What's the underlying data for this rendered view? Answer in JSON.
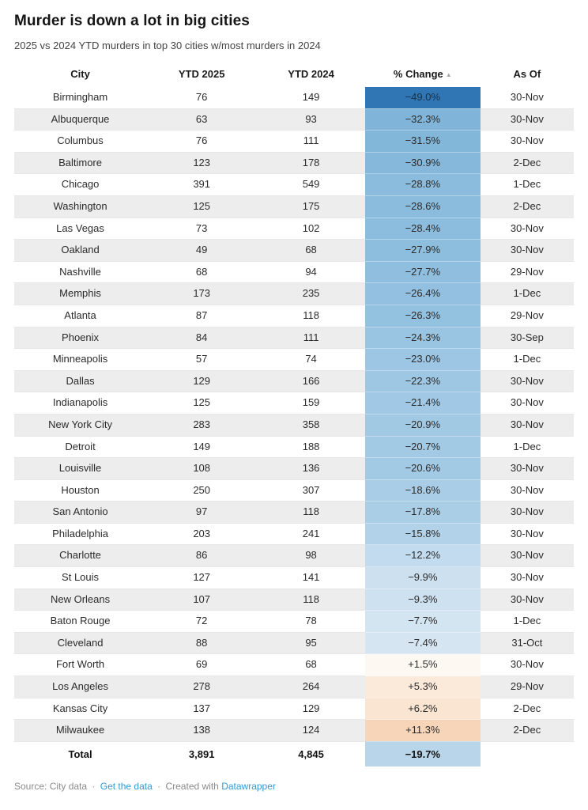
{
  "header": {
    "title": "Murder is down a lot in big cities",
    "subtitle": "2025 vs 2024 YTD murders in top 30 cities w/most murders in 2024"
  },
  "colors": {
    "link_blue": "#2f9bd5",
    "stripe_gray": "#ededed",
    "negative_scale_max": "#3076b4",
    "positive_scale_max": "#f6d5b9",
    "sort_arrow_gray": "#a9a9a9"
  },
  "sort": {
    "column": "% Change",
    "direction": "ascending",
    "icon": "▲"
  },
  "chart_data": {
    "type": "table",
    "title": "Murder is down a lot in big cities",
    "subtitle": "2025 vs 2024 YTD murders in top 30 cities w/most murders in 2024",
    "columns": [
      "City",
      "YTD 2025",
      "YTD 2024",
      "% Change",
      "As Of"
    ],
    "sorted_by": "% Change",
    "sort_direction": "asc",
    "rows": [
      {
        "city": "Birmingham",
        "ytd2025": 76,
        "ytd2024": 149,
        "pct_change": "−49.0%",
        "as_of": "30-Nov",
        "pct_color": "#3076b4",
        "pct_text": "#17324a"
      },
      {
        "city": "Albuquerque",
        "ytd2025": 63,
        "ytd2024": 93,
        "pct_change": "−32.3%",
        "as_of": "30-Nov",
        "pct_color": "#80b5d9"
      },
      {
        "city": "Columbus",
        "ytd2025": 76,
        "ytd2024": 111,
        "pct_change": "−31.5%",
        "as_of": "30-Nov",
        "pct_color": "#83b7da"
      },
      {
        "city": "Baltimore",
        "ytd2025": 123,
        "ytd2024": 178,
        "pct_change": "−30.9%",
        "as_of": "2-Dec",
        "pct_color": "#85b8db"
      },
      {
        "city": "Chicago",
        "ytd2025": 391,
        "ytd2024": 549,
        "pct_change": "−28.8%",
        "as_of": "1-Dec",
        "pct_color": "#8bbcdd"
      },
      {
        "city": "Washington",
        "ytd2025": 125,
        "ytd2024": 175,
        "pct_change": "−28.6%",
        "as_of": "2-Dec",
        "pct_color": "#8cbcdd"
      },
      {
        "city": "Las Vegas",
        "ytd2025": 73,
        "ytd2024": 102,
        "pct_change": "−28.4%",
        "as_of": "30-Nov",
        "pct_color": "#8dbdde"
      },
      {
        "city": "Oakland",
        "ytd2025": 49,
        "ytd2024": 68,
        "pct_change": "−27.9%",
        "as_of": "30-Nov",
        "pct_color": "#8ebede"
      },
      {
        "city": "Nashville",
        "ytd2025": 68,
        "ytd2024": 94,
        "pct_change": "−27.7%",
        "as_of": "29-Nov",
        "pct_color": "#8fbede"
      },
      {
        "city": "Memphis",
        "ytd2025": 173,
        "ytd2024": 235,
        "pct_change": "−26.4%",
        "as_of": "1-Dec",
        "pct_color": "#93c0e0"
      },
      {
        "city": "Atlanta",
        "ytd2025": 87,
        "ytd2024": 118,
        "pct_change": "−26.3%",
        "as_of": "29-Nov",
        "pct_color": "#93c1e0"
      },
      {
        "city": "Phoenix",
        "ytd2025": 84,
        "ytd2024": 111,
        "pct_change": "−24.3%",
        "as_of": "30-Sep",
        "pct_color": "#99c4e2"
      },
      {
        "city": "Minneapolis",
        "ytd2025": 57,
        "ytd2024": 74,
        "pct_change": "−23.0%",
        "as_of": "1-Dec",
        "pct_color": "#9cc6e3"
      },
      {
        "city": "Dallas",
        "ytd2025": 129,
        "ytd2024": 166,
        "pct_change": "−22.3%",
        "as_of": "30-Nov",
        "pct_color": "#9ec7e3"
      },
      {
        "city": "Indianapolis",
        "ytd2025": 125,
        "ytd2024": 159,
        "pct_change": "−21.4%",
        "as_of": "30-Nov",
        "pct_color": "#a1c8e4"
      },
      {
        "city": "New York City",
        "ytd2025": 283,
        "ytd2024": 358,
        "pct_change": "−20.9%",
        "as_of": "30-Nov",
        "pct_color": "#a2c9e4"
      },
      {
        "city": "Detroit",
        "ytd2025": 149,
        "ytd2024": 188,
        "pct_change": "−20.7%",
        "as_of": "1-Dec",
        "pct_color": "#a3cae5"
      },
      {
        "city": "Louisville",
        "ytd2025": 108,
        "ytd2024": 136,
        "pct_change": "−20.6%",
        "as_of": "30-Nov",
        "pct_color": "#a3cae5"
      },
      {
        "city": "Houston",
        "ytd2025": 250,
        "ytd2024": 307,
        "pct_change": "−18.6%",
        "as_of": "30-Nov",
        "pct_color": "#a9cde6"
      },
      {
        "city": "San Antonio",
        "ytd2025": 97,
        "ytd2024": 118,
        "pct_change": "−17.8%",
        "as_of": "30-Nov",
        "pct_color": "#abcee7"
      },
      {
        "city": "Philadelphia",
        "ytd2025": 203,
        "ytd2024": 241,
        "pct_change": "−15.8%",
        "as_of": "30-Nov",
        "pct_color": "#b2d2e9"
      },
      {
        "city": "Charlotte",
        "ytd2025": 86,
        "ytd2024": 98,
        "pct_change": "−12.2%",
        "as_of": "30-Nov",
        "pct_color": "#c2dbee"
      },
      {
        "city": "St Louis",
        "ytd2025": 127,
        "ytd2024": 141,
        "pct_change": "−9.9%",
        "as_of": "30-Nov",
        "pct_color": "#cce0f0"
      },
      {
        "city": "New Orleans",
        "ytd2025": 107,
        "ytd2024": 118,
        "pct_change": "−9.3%",
        "as_of": "30-Nov",
        "pct_color": "#cee1f1"
      },
      {
        "city": "Baton Rouge",
        "ytd2025": 72,
        "ytd2024": 78,
        "pct_change": "−7.7%",
        "as_of": "1-Dec",
        "pct_color": "#d4e5f2"
      },
      {
        "city": "Cleveland",
        "ytd2025": 88,
        "ytd2024": 95,
        "pct_change": "−7.4%",
        "as_of": "31-Oct",
        "pct_color": "#d5e5f2"
      },
      {
        "city": "Fort Worth",
        "ytd2025": 69,
        "ytd2024": 68,
        "pct_change": "+1.5%",
        "as_of": "30-Nov",
        "pct_color": "#fdf8f1"
      },
      {
        "city": "Los Angeles",
        "ytd2025": 278,
        "ytd2024": 264,
        "pct_change": "+5.3%",
        "as_of": "29-Nov",
        "pct_color": "#fbe9d9"
      },
      {
        "city": "Kansas City",
        "ytd2025": 137,
        "ytd2024": 129,
        "pct_change": "+6.2%",
        "as_of": "2-Dec",
        "pct_color": "#f9e5d1"
      },
      {
        "city": "Milwaukee",
        "ytd2025": 138,
        "ytd2024": 124,
        "pct_change": "+11.3%",
        "as_of": "2-Dec",
        "pct_color": "#f6d5b9"
      }
    ],
    "total": {
      "label": "Total",
      "ytd2025": "3,891",
      "ytd2024": "4,845",
      "pct_change": "−19.7%",
      "as_of": "",
      "pct_color": "#b9d5ea"
    }
  },
  "footer": {
    "source_text": "Source: City data",
    "sep1": "·",
    "get_data_link": "Get the data",
    "sep2": "·",
    "created_with": "Created with",
    "datawrapper_link": "Datawrapper"
  }
}
